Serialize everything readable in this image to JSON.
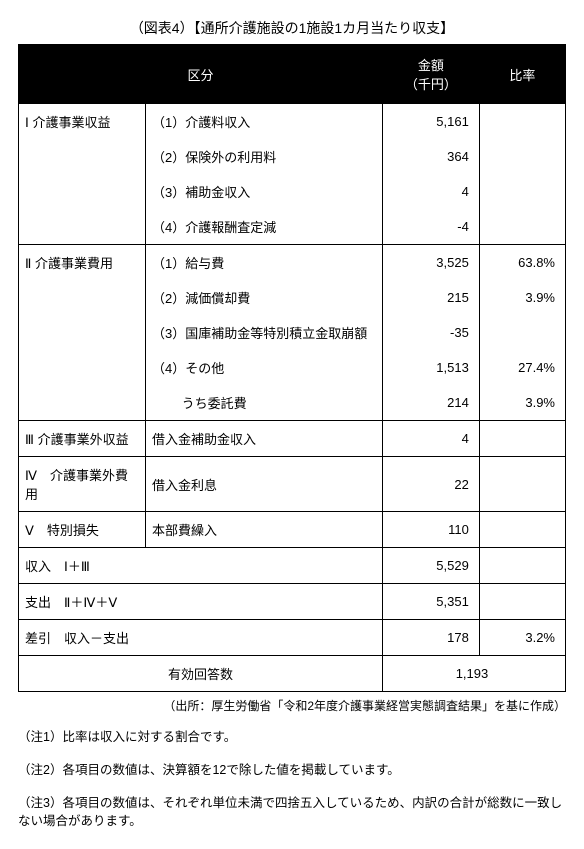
{
  "title": "（図表4）【通所介護施設の1施設1カ月当たり収支】",
  "headers": {
    "category": "区分",
    "amount": "金額\n（千円）",
    "ratio": "比率"
  },
  "sections": {
    "s1": {
      "label": "Ⅰ 介護事業収益",
      "items": [
        {
          "label": "（1）介護料収入",
          "amount": "5,161",
          "ratio": ""
        },
        {
          "label": "（2）保険外の利用料",
          "amount": "364",
          "ratio": ""
        },
        {
          "label": "（3）補助金収入",
          "amount": "4",
          "ratio": ""
        },
        {
          "label": "（4）介護報酬査定減",
          "amount": "-4",
          "ratio": ""
        }
      ]
    },
    "s2": {
      "label": "Ⅱ 介護事業費用",
      "items": [
        {
          "label": "（1）給与費",
          "amount": "3,525",
          "ratio": "63.8%"
        },
        {
          "label": "（2）減価償却費",
          "amount": "215",
          "ratio": "3.9%"
        },
        {
          "label": "（3）国庫補助金等特別積立金取崩額",
          "amount": "-35",
          "ratio": ""
        },
        {
          "label": "（4）その他",
          "amount": "1,513",
          "ratio": "27.4%"
        },
        {
          "label": "　　 うち委託費",
          "amount": "214",
          "ratio": "3.9%"
        }
      ]
    },
    "s3": {
      "label": "Ⅲ 介護事業外収益",
      "item": "借入金補助金収入",
      "amount": "4",
      "ratio": ""
    },
    "s4": {
      "label": "Ⅳ　介護事業外費用",
      "item": "借入金利息",
      "amount": "22",
      "ratio": ""
    },
    "s5": {
      "label": "Ⅴ　特別損失",
      "item": "本部費繰入",
      "amount": "110",
      "ratio": ""
    }
  },
  "totals": {
    "income": {
      "label": "収入　Ⅰ＋Ⅲ",
      "amount": "5,529",
      "ratio": ""
    },
    "expense": {
      "label": "支出　Ⅱ＋Ⅳ＋Ⅴ",
      "amount": "5,351",
      "ratio": ""
    },
    "diff": {
      "label": "差引　収入－支出",
      "amount": "178",
      "ratio": "3.2%"
    },
    "responses": {
      "label": "有効回答数",
      "amount": "1,193"
    }
  },
  "source": "（出所：厚生労働省「令和2年度介護事業経営実態調査結果」を基に作成）",
  "notes": {
    "n1": "（注1）比率は収入に対する割合です。",
    "n2": "（注2）各項目の数値は、決算額を12で除した値を掲載しています。",
    "n3": "（注3）各項目の数値は、それぞれ単位未満で四捨五入しているため、内訳の合計が総数に一致しない場合があります。"
  },
  "style": {
    "header_bg": "#000000",
    "header_fg": "#ffffff",
    "border_color": "#000000",
    "bg": "#ffffff",
    "font_size": 13
  }
}
